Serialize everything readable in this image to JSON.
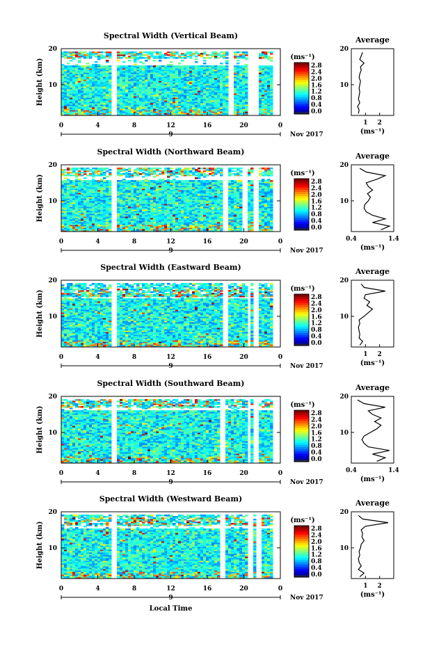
{
  "figure": {
    "xlabel": "Local Time",
    "date_label": "Nov 2017",
    "ylabel": "Height (km)",
    "unit": "(ms⁻¹)",
    "average_title": "Average",
    "average_xlabel": "(ms⁻¹)",
    "panels": [
      {
        "title": "Spectral Width (Vertical Beam)"
      },
      {
        "title": "Spectral Width (Northward Beam)"
      },
      {
        "title": "Spectral Width (Eastward Beam)"
      },
      {
        "title": "Spectral Width (Southward Beam)"
      },
      {
        "title": "Spectral Width (Westward Beam)"
      }
    ]
  },
  "chart_data": [
    {
      "type": "heatmap",
      "title": "Spectral Width (Vertical Beam)",
      "xlabel": "",
      "ylabel": "Height (km)",
      "xlim": [
        0,
        24
      ],
      "ylim": [
        1.5,
        20
      ],
      "xticks": [
        "0",
        "4",
        "8",
        "12",
        "16",
        "20",
        "0"
      ],
      "yticks": [
        "10",
        "20"
      ],
      "sub_axis_label": "9",
      "colorbar": {
        "label": "(ms⁻¹)",
        "min": 0.0,
        "max": 2.8,
        "ticks": [
          "0.0",
          "0.4",
          "0.8",
          "1.2",
          "1.6",
          "2.0",
          "2.4",
          "2.8"
        ]
      },
      "data_gaps_hours": [
        5.8,
        18.6,
        20.6,
        21.4
      ],
      "blank_height_band_km": [
        15.5,
        17.5
      ],
      "average_profile": {
        "type": "line",
        "title": "Average",
        "xlabel": "(ms⁻¹)",
        "xlim": [
          0,
          3
        ],
        "xticks": [
          "1",
          "2"
        ],
        "height_km": [
          2,
          3,
          4,
          5,
          6,
          7,
          8,
          9,
          10,
          11,
          12,
          13,
          14,
          15,
          16,
          17,
          18,
          19
        ],
        "values": [
          0.5,
          0.55,
          0.45,
          0.6,
          0.5,
          0.55,
          0.6,
          0.55,
          0.6,
          0.65,
          0.55,
          0.6,
          0.7,
          0.65,
          0.9,
          0.6,
          0.7,
          0.8
        ]
      }
    },
    {
      "type": "heatmap",
      "title": "Spectral Width (Northward Beam)",
      "xlabel": "",
      "ylabel": "Height (km)",
      "xlim": [
        0,
        24
      ],
      "ylim": [
        1.5,
        20
      ],
      "xticks": [
        "0",
        "4",
        "8",
        "12",
        "16",
        "20",
        "0"
      ],
      "yticks": [
        "10",
        "20"
      ],
      "sub_axis_label": "9",
      "colorbar": {
        "label": "(ms⁻¹)",
        "min": 0.0,
        "max": 2.8,
        "ticks": [
          "0.0",
          "0.4",
          "0.8",
          "1.2",
          "1.6",
          "2.0",
          "2.4",
          "2.8"
        ]
      },
      "data_gaps_hours": [
        5.8,
        18.0,
        20.0,
        21.3
      ],
      "blank_height_band_km": [
        16.0,
        17.0
      ],
      "average_profile": {
        "type": "line",
        "title": "Average",
        "xlabel": "(ms⁻¹)",
        "xlim": [
          0.4,
          1.4
        ],
        "xticks": [
          "0.4",
          "1.4"
        ],
        "height_km": [
          2,
          3,
          4,
          5,
          6,
          7,
          8,
          9,
          10,
          11,
          12,
          13,
          14,
          15,
          16,
          17,
          18,
          19
        ],
        "values": [
          1.1,
          1.3,
          0.9,
          1.2,
          0.9,
          0.75,
          0.7,
          0.72,
          0.8,
          0.85,
          0.78,
          0.9,
          0.8,
          0.75,
          1.0,
          1.2,
          0.75,
          0.6
        ]
      }
    },
    {
      "type": "heatmap",
      "title": "Spectral Width (Eastward Beam)",
      "xlabel": "",
      "ylabel": "Height (km)",
      "xlim": [
        0,
        24
      ],
      "ylim": [
        1.5,
        20
      ],
      "xticks": [
        "0",
        "4",
        "8",
        "12",
        "16",
        "20",
        "0"
      ],
      "yticks": [
        "10",
        "20"
      ],
      "sub_axis_label": "9",
      "colorbar": {
        "label": "(ms⁻¹)",
        "min": 0.0,
        "max": 2.8,
        "ticks": [
          "0.0",
          "0.4",
          "0.8",
          "1.2",
          "1.6",
          "2.0",
          "2.4",
          "2.8"
        ]
      },
      "data_gaps_hours": [
        5.8,
        18.0,
        20.5,
        21.4
      ],
      "blank_height_band_km": [
        15.0,
        15.5
      ],
      "average_profile": {
        "type": "line",
        "title": "Average",
        "xlabel": "(ms⁻¹)",
        "xlim": [
          0,
          3
        ],
        "xticks": [
          "1",
          "2"
        ],
        "height_km": [
          2,
          3,
          4,
          5,
          6,
          7,
          8,
          9,
          10,
          11,
          12,
          13,
          14,
          15,
          16,
          17,
          18,
          19
        ],
        "values": [
          0.6,
          0.8,
          0.55,
          0.6,
          0.55,
          0.5,
          0.6,
          0.55,
          0.9,
          1.2,
          1.5,
          1.1,
          1.3,
          0.9,
          1.0,
          2.4,
          0.9,
          0.7
        ]
      }
    },
    {
      "type": "heatmap",
      "title": "Spectral Width (Southward Beam)",
      "xlabel": "",
      "ylabel": "Height (km)",
      "xlim": [
        0,
        24
      ],
      "ylim": [
        1.5,
        20
      ],
      "xticks": [
        "0",
        "4",
        "8",
        "12",
        "16",
        "20",
        "0"
      ],
      "yticks": [
        "10",
        "20"
      ],
      "sub_axis_label": "9",
      "colorbar": {
        "label": "(ms⁻¹)",
        "min": 0.0,
        "max": 2.8,
        "ticks": [
          "0.0",
          "0.4",
          "0.8",
          "1.2",
          "1.6",
          "2.0",
          "2.4",
          "2.8"
        ]
      },
      "data_gaps_hours": [
        5.8,
        17.7,
        20.5,
        21.3
      ],
      "blank_height_band_km": [
        16.5,
        17.0
      ],
      "average_profile": {
        "type": "line",
        "title": "Average",
        "xlabel": "(ms⁻¹)",
        "xlim": [
          0.4,
          1.4
        ],
        "xticks": [
          "0.4",
          "1.4"
        ],
        "height_km": [
          2,
          3,
          4,
          5,
          6,
          7,
          8,
          9,
          10,
          11,
          12,
          13,
          14,
          15,
          16,
          17,
          18,
          19
        ],
        "values": [
          1.0,
          1.2,
          0.9,
          1.3,
          0.8,
          0.7,
          0.65,
          0.7,
          0.85,
          1.0,
          1.1,
          0.95,
          1.1,
          0.9,
          0.8,
          1.2,
          0.7,
          0.55
        ]
      }
    },
    {
      "type": "heatmap",
      "title": "Spectral Width (Westward Beam)",
      "xlabel": "Local Time",
      "ylabel": "Height (km)",
      "xlim": [
        0,
        24
      ],
      "ylim": [
        1.5,
        20
      ],
      "xticks": [
        "0",
        "4",
        "8",
        "12",
        "16",
        "20",
        "0"
      ],
      "yticks": [
        "10",
        "20"
      ],
      "sub_axis_label": "9",
      "colorbar": {
        "label": "(ms⁻¹)",
        "min": 0.0,
        "max": 2.8,
        "ticks": [
          "0.0",
          "0.4",
          "0.8",
          "1.2",
          "1.6",
          "2.0",
          "2.4",
          "2.8"
        ]
      },
      "data_gaps_hours": [
        5.8,
        17.7,
        20.6,
        21.5
      ],
      "blank_height_band_km": [
        15.5,
        16.5
      ],
      "average_profile": {
        "type": "line",
        "title": "Average",
        "xlabel": "(ms⁻¹)",
        "xlim": [
          0,
          3
        ],
        "xticks": [
          "1",
          "2"
        ],
        "height_km": [
          2,
          3,
          4,
          5,
          6,
          7,
          8,
          9,
          10,
          11,
          12,
          13,
          14,
          15,
          16,
          17,
          18,
          19
        ],
        "values": [
          0.6,
          0.9,
          0.5,
          0.7,
          0.55,
          0.5,
          0.6,
          0.55,
          0.65,
          0.7,
          0.9,
          0.75,
          0.8,
          0.7,
          1.0,
          2.6,
          0.8,
          0.5
        ]
      }
    }
  ]
}
